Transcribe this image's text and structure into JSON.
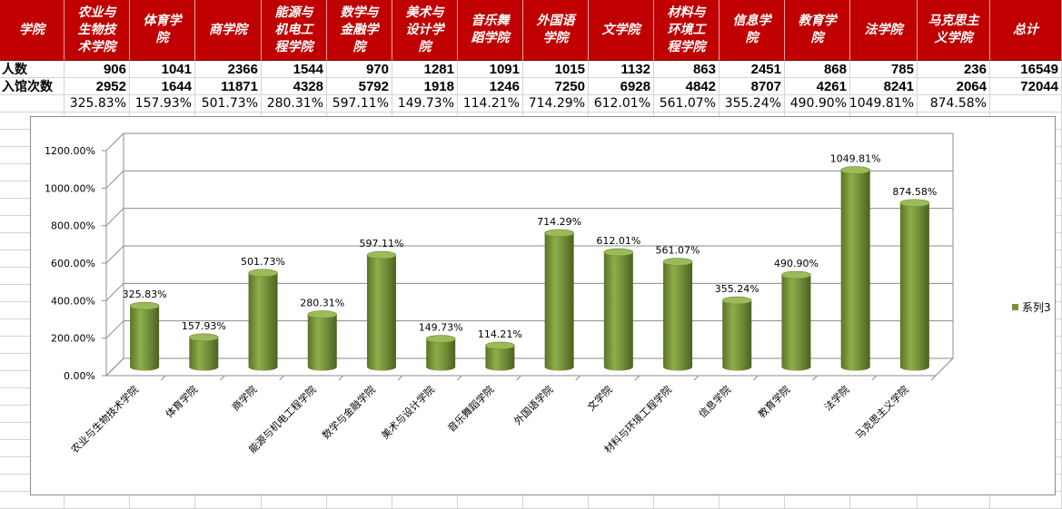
{
  "table": {
    "header_label": "学院",
    "columns": [
      "农业与生物技术学院",
      "体育学院",
      "商学院",
      "能源与机电工程学院",
      "数学与金融学院",
      "美术与设计学院",
      "音乐舞蹈学院",
      "外国语学院",
      "文学院",
      "材料与环境工程学院",
      "信息学院",
      "教育学院",
      "法学院",
      "马克思主义学院",
      "总计"
    ],
    "header_wrapped": [
      [
        "农业与",
        "生物技",
        "术学院"
      ],
      [
        "体育学",
        "院"
      ],
      [
        "商学院"
      ],
      [
        "能源与",
        "机电工",
        "程学院"
      ],
      [
        "数学与",
        "金融学",
        "院"
      ],
      [
        "美术与",
        "设计学",
        "院"
      ],
      [
        "音乐舞",
        "蹈学院"
      ],
      [
        "外国语",
        "学院"
      ],
      [
        "文学院"
      ],
      [
        "材料与",
        "环境工",
        "程学院"
      ],
      [
        "信息学",
        "院"
      ],
      [
        "教育学",
        "院"
      ],
      [
        "法学院"
      ],
      [
        "马克思主",
        "义学院"
      ],
      [
        "总计"
      ]
    ],
    "rows": [
      {
        "label": "人数",
        "values": [
          "906",
          "1041",
          "2366",
          "1544",
          "970",
          "1281",
          "1091",
          "1015",
          "1132",
          "863",
          "2451",
          "868",
          "785",
          "236",
          "16549"
        ]
      },
      {
        "label": "入馆次数",
        "values": [
          "2952",
          "1644",
          "11871",
          "4328",
          "5792",
          "1918",
          "1246",
          "7250",
          "6928",
          "4842",
          "8707",
          "4261",
          "8241",
          "2064",
          "72044"
        ]
      },
      {
        "label": "",
        "values": [
          "325.83%",
          "157.93%",
          "501.73%",
          "280.31%",
          "597.11%",
          "149.73%",
          "114.21%",
          "714.29%",
          "612.01%",
          "561.07%",
          "355.24%",
          "490.90%",
          "1049.81%",
          "874.58%",
          ""
        ]
      }
    ]
  },
  "chart_data": {
    "type": "bar",
    "style": "3d-cylinder",
    "categories": [
      "农业与生物技术学院",
      "体育学院",
      "商学院",
      "能源与机电工程学院",
      "数学与金融学院",
      "美术与设计学院",
      "音乐舞蹈学院",
      "外国语学院",
      "文学院",
      "材料与环境工程学院",
      "信息学院",
      "教育学院",
      "法学院",
      "马克思主义学院"
    ],
    "series": [
      {
        "name": "系列3",
        "values": [
          325.83,
          157.93,
          501.73,
          280.31,
          597.11,
          149.73,
          114.21,
          714.29,
          612.01,
          561.07,
          355.24,
          490.9,
          1049.81,
          874.58
        ],
        "color": "#77933c"
      }
    ],
    "data_labels": [
      "325.83%",
      "157.93%",
      "501.73%",
      "280.31%",
      "597.11%",
      "149.73%",
      "114.21%",
      "714.29%",
      "612.01%",
      "561.07%",
      "355.24%",
      "490.90%",
      "1049.81%",
      "874.58%"
    ],
    "y_ticks": [
      "0.00%",
      "200.00%",
      "400.00%",
      "600.00%",
      "800.00%",
      "1000.00%",
      "1200.00%"
    ],
    "ylim": [
      0,
      1200
    ],
    "grid": true,
    "legend": "right",
    "title": "",
    "xlabel": "",
    "ylabel": ""
  }
}
